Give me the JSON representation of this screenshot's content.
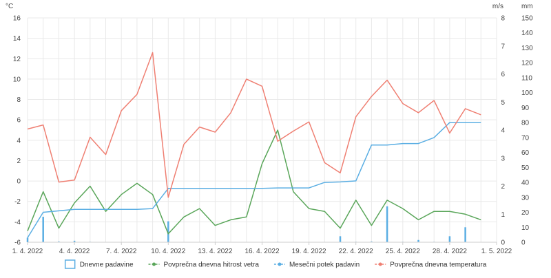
{
  "chart_data": {
    "type": "line",
    "units": {
      "temperature": "°C",
      "wind": "m/s",
      "precipitation": "mm"
    },
    "x_tick_labels": [
      "1. 4. 2022",
      "4. 4. 2022",
      "7. 4. 2022",
      "10. 4. 2022",
      "13. 4. 2022",
      "16. 4. 2022",
      "19. 4. 2022",
      "22. 4. 2022",
      "25. 4. 2022",
      "28. 4. 2022",
      "1. 5. 2022"
    ],
    "x_tick_days": [
      1,
      4,
      7,
      10,
      13,
      16,
      19,
      22,
      25,
      28,
      31
    ],
    "days": [
      1,
      2,
      3,
      4,
      5,
      6,
      7,
      8,
      9,
      10,
      11,
      12,
      13,
      14,
      15,
      16,
      17,
      18,
      19,
      20,
      21,
      22,
      23,
      24,
      25,
      26,
      27,
      28,
      29,
      30
    ],
    "axes": {
      "temperature": {
        "min": -6,
        "max": 16,
        "ticks": [
          -6,
          -4,
          -2,
          0,
          2,
          4,
          6,
          8,
          10,
          12,
          14,
          16
        ]
      },
      "wind": {
        "min": 0,
        "max": 8,
        "ticks": [
          0,
          1,
          2,
          3,
          4,
          5,
          6,
          7,
          8
        ]
      },
      "precipitation": {
        "min": 0,
        "max": 150,
        "ticks": [
          0,
          10,
          20,
          30,
          40,
          50,
          60,
          70,
          80,
          90,
          100,
          110,
          120,
          130,
          140,
          150
        ]
      }
    },
    "grid": true,
    "legend_position": "bottom",
    "series": [
      {
        "name": "Dnevne padavine",
        "type": "bar",
        "axis": "precipitation",
        "color": "#5aaee3",
        "values": [
          3,
          17,
          0.5,
          1,
          0.3,
          0,
          0,
          0,
          0,
          14,
          0,
          0,
          0,
          0,
          0,
          0,
          0.3,
          0,
          0,
          0,
          4,
          0.3,
          0.5,
          24,
          0.3,
          1.5,
          0.3,
          4,
          10,
          0
        ]
      },
      {
        "name": "Povprečna dnevna hitrost vetra",
        "type": "line",
        "axis": "wind",
        "color": "#5aa65a",
        "values": [
          0.4,
          1.8,
          0.5,
          1.4,
          2.0,
          1.1,
          1.7,
          2.1,
          1.7,
          0.3,
          0.9,
          1.2,
          0.6,
          0.8,
          0.9,
          2.8,
          4.0,
          1.8,
          1.2,
          1.1,
          0.5,
          1.5,
          0.6,
          1.5,
          1.2,
          0.8,
          1.1,
          1.1,
          1.0,
          0.8
        ]
      },
      {
        "name": "Mesečni potek padavin",
        "type": "line",
        "axis": "precipitation",
        "color": "#5aaee3",
        "values": [
          3,
          20,
          21,
          22,
          22,
          22,
          22,
          22,
          22.5,
          36,
          36,
          36,
          36,
          36,
          36,
          36,
          36.3,
          36.3,
          36.3,
          40,
          40.3,
          41,
          65,
          65,
          66,
          66,
          70,
          80,
          80,
          80
        ]
      },
      {
        "name": "Povprečna dnevna temperatura",
        "type": "line",
        "axis": "temperature",
        "color": "#ef7f72",
        "values": [
          5.1,
          5.5,
          -0.1,
          0.1,
          4.3,
          2.6,
          6.9,
          8.5,
          12.6,
          -1.6,
          3.6,
          5.3,
          4.8,
          6.7,
          10.0,
          9.3,
          3.9,
          4.9,
          5.8,
          1.8,
          0.8,
          6.3,
          8.3,
          9.9,
          7.6,
          6.7,
          7.9,
          4.7,
          7.1,
          6.5
        ]
      }
    ]
  }
}
